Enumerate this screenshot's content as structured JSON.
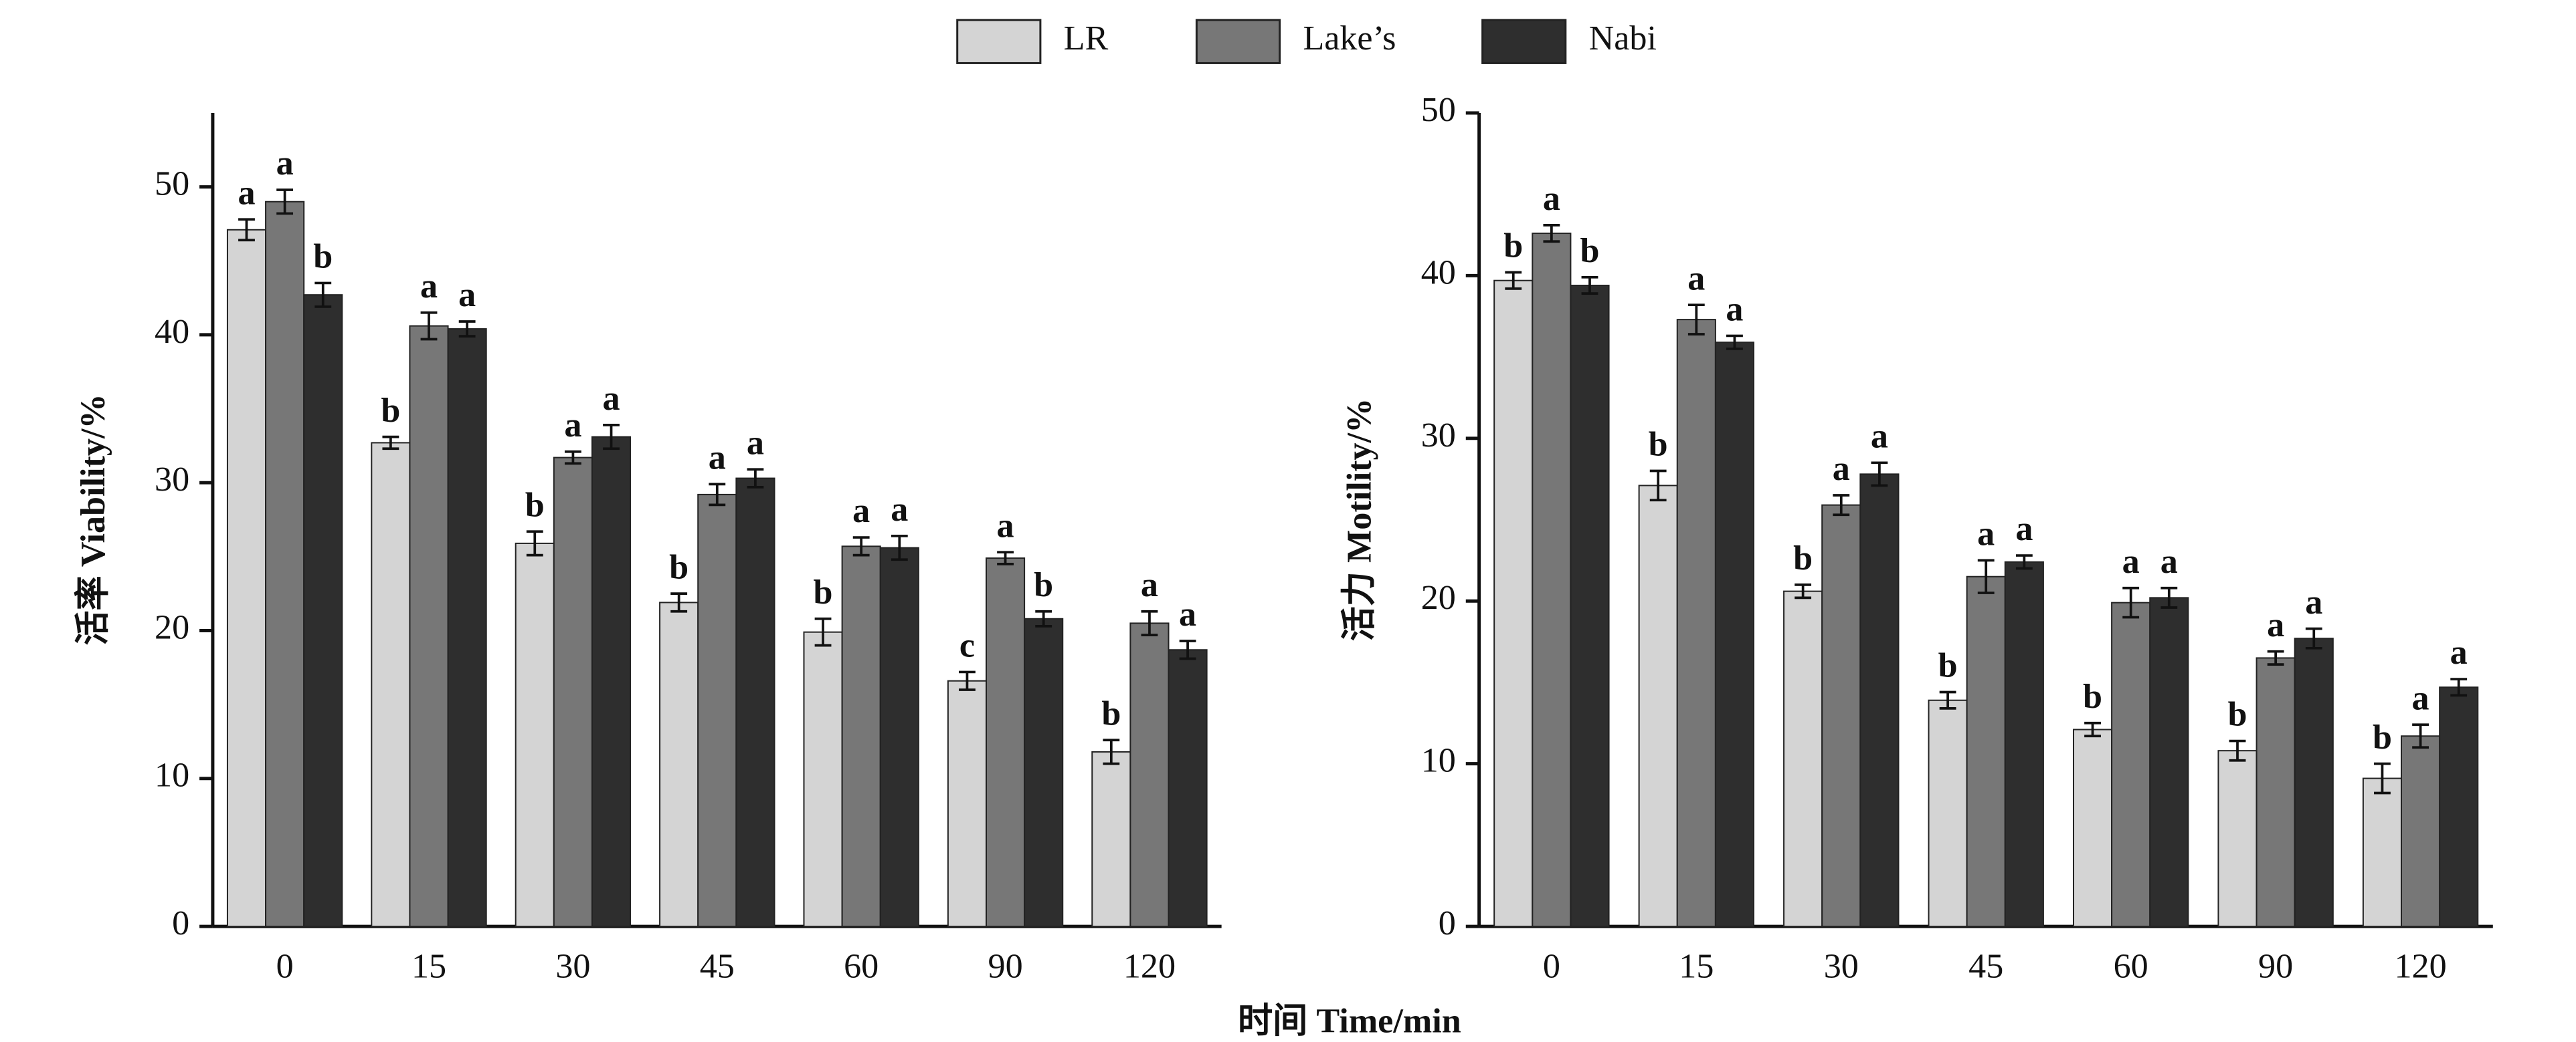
{
  "xlabel": "时间 Time/min",
  "chart_data": [
    {
      "type": "bar",
      "ylabel": "活率 Viability/%",
      "categories": [
        "0",
        "15",
        "30",
        "45",
        "60",
        "90",
        "120"
      ],
      "ylim": [
        0,
        55
      ],
      "yticks": [
        0,
        10,
        20,
        30,
        40,
        50
      ],
      "series": [
        {
          "name": "LR",
          "color": "#d4d4d4",
          "values": [
            47.1,
            32.7,
            25.9,
            21.9,
            19.9,
            16.6,
            11.8
          ],
          "errors": [
            0.7,
            0.4,
            0.8,
            0.6,
            0.9,
            0.6,
            0.8
          ],
          "letters": [
            "a",
            "b",
            "b",
            "b",
            "b",
            "c",
            "b"
          ]
        },
        {
          "name": "Lake’s",
          "color": "#777777",
          "values": [
            49.0,
            40.6,
            31.7,
            29.2,
            25.7,
            24.9,
            20.5
          ],
          "errors": [
            0.8,
            0.9,
            0.4,
            0.7,
            0.6,
            0.4,
            0.8
          ],
          "letters": [
            "a",
            "a",
            "a",
            "a",
            "a",
            "a",
            "a"
          ]
        },
        {
          "name": "Nabi",
          "color": "#2e2e2e",
          "values": [
            42.7,
            40.4,
            33.1,
            30.3,
            25.6,
            20.8,
            18.7
          ],
          "errors": [
            0.8,
            0.5,
            0.8,
            0.6,
            0.8,
            0.5,
            0.6
          ],
          "letters": [
            "b",
            "a",
            "a",
            "a",
            "a",
            "b",
            "a"
          ]
        }
      ]
    },
    {
      "type": "bar",
      "ylabel": "活力 Motility/%",
      "categories": [
        "0",
        "15",
        "30",
        "45",
        "60",
        "90",
        "120"
      ],
      "ylim": [
        0,
        50
      ],
      "yticks": [
        0,
        10,
        20,
        30,
        40,
        50
      ],
      "series": [
        {
          "color": "#d4d4d4",
          "values": [
            39.7,
            27.1,
            20.6,
            13.9,
            12.1,
            10.8,
            9.1
          ],
          "errors": [
            0.5,
            0.9,
            0.4,
            0.5,
            0.4,
            0.6,
            0.9
          ],
          "letters": [
            "b",
            "b",
            "b",
            "b",
            "b",
            "b",
            "b"
          ]
        },
        {
          "color": "#777777",
          "values": [
            42.6,
            37.3,
            25.9,
            21.5,
            19.9,
            16.5,
            11.7
          ],
          "errors": [
            0.5,
            0.9,
            0.6,
            1.0,
            0.9,
            0.4,
            0.7
          ],
          "letters": [
            "a",
            "a",
            "a",
            "a",
            "a",
            "a",
            "a"
          ]
        },
        {
          "color": "#2e2e2e",
          "values": [
            39.4,
            35.9,
            27.8,
            22.4,
            20.2,
            17.7,
            14.7
          ],
          "errors": [
            0.5,
            0.4,
            0.7,
            0.4,
            0.6,
            0.6,
            0.5
          ],
          "letters": [
            "b",
            "a",
            "a",
            "a",
            "a",
            "a",
            "a"
          ]
        }
      ]
    }
  ]
}
